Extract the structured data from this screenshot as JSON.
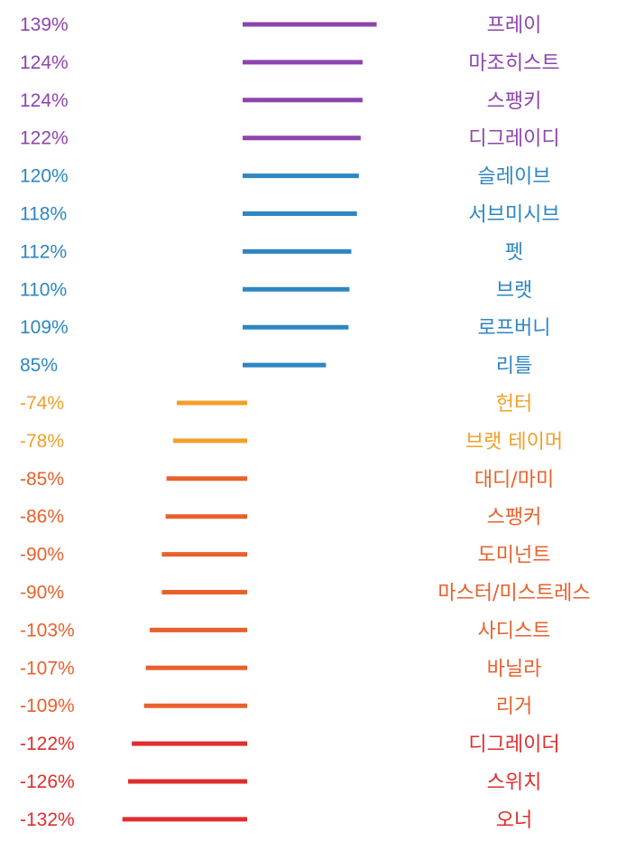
{
  "chart_data": {
    "type": "bar",
    "orientation": "horizontal-diverging",
    "unit": "%",
    "grid": false,
    "legend": "none",
    "xlim": [
      -132,
      139
    ],
    "rows": [
      {
        "label": "프레이",
        "value": 139,
        "value_text": "139%",
        "color": "#8e44ad"
      },
      {
        "label": "마조히스트",
        "value": 124,
        "value_text": "124%",
        "color": "#8e44ad"
      },
      {
        "label": "스팽키",
        "value": 124,
        "value_text": "124%",
        "color": "#8e44ad"
      },
      {
        "label": "디그레이디",
        "value": 122,
        "value_text": "122%",
        "color": "#8e44ad"
      },
      {
        "label": "슬레이브",
        "value": 120,
        "value_text": "120%",
        "color": "#2e86c1"
      },
      {
        "label": "서브미시브",
        "value": 118,
        "value_text": "118%",
        "color": "#2e86c1"
      },
      {
        "label": "펫",
        "value": 112,
        "value_text": "112%",
        "color": "#2e86c1"
      },
      {
        "label": "브랫",
        "value": 110,
        "value_text": "110%",
        "color": "#2e86c1"
      },
      {
        "label": "로프버니",
        "value": 109,
        "value_text": "109%",
        "color": "#2e86c1"
      },
      {
        "label": "리틀",
        "value": 85,
        "value_text": "85%",
        "color": "#2e86c1"
      },
      {
        "label": "헌터",
        "value": -74,
        "value_text": "-74%",
        "color": "#f0a02a"
      },
      {
        "label": "브랫 테이머",
        "value": -78,
        "value_text": "-78%",
        "color": "#f0a02a"
      },
      {
        "label": "대디/마미",
        "value": -85,
        "value_text": "-85%",
        "color": "#e8612c"
      },
      {
        "label": "스팽커",
        "value": -86,
        "value_text": "-86%",
        "color": "#e8612c"
      },
      {
        "label": "도미넌트",
        "value": -90,
        "value_text": "-90%",
        "color": "#e8612c"
      },
      {
        "label": "마스터/미스트레스",
        "value": -90,
        "value_text": "-90%",
        "color": "#e8612c"
      },
      {
        "label": "사디스트",
        "value": -103,
        "value_text": "-103%",
        "color": "#e8612c"
      },
      {
        "label": "바닐라",
        "value": -107,
        "value_text": "-107%",
        "color": "#e8612c"
      },
      {
        "label": "리거",
        "value": -109,
        "value_text": "-109%",
        "color": "#e8612c"
      },
      {
        "label": "디그레이더",
        "value": -122,
        "value_text": "-122%",
        "color": "#e02d2d"
      },
      {
        "label": "스위치",
        "value": -126,
        "value_text": "-126%",
        "color": "#e02d2d"
      },
      {
        "label": "오너",
        "value": -132,
        "value_text": "-132%",
        "color": "#e02d2d"
      }
    ]
  }
}
